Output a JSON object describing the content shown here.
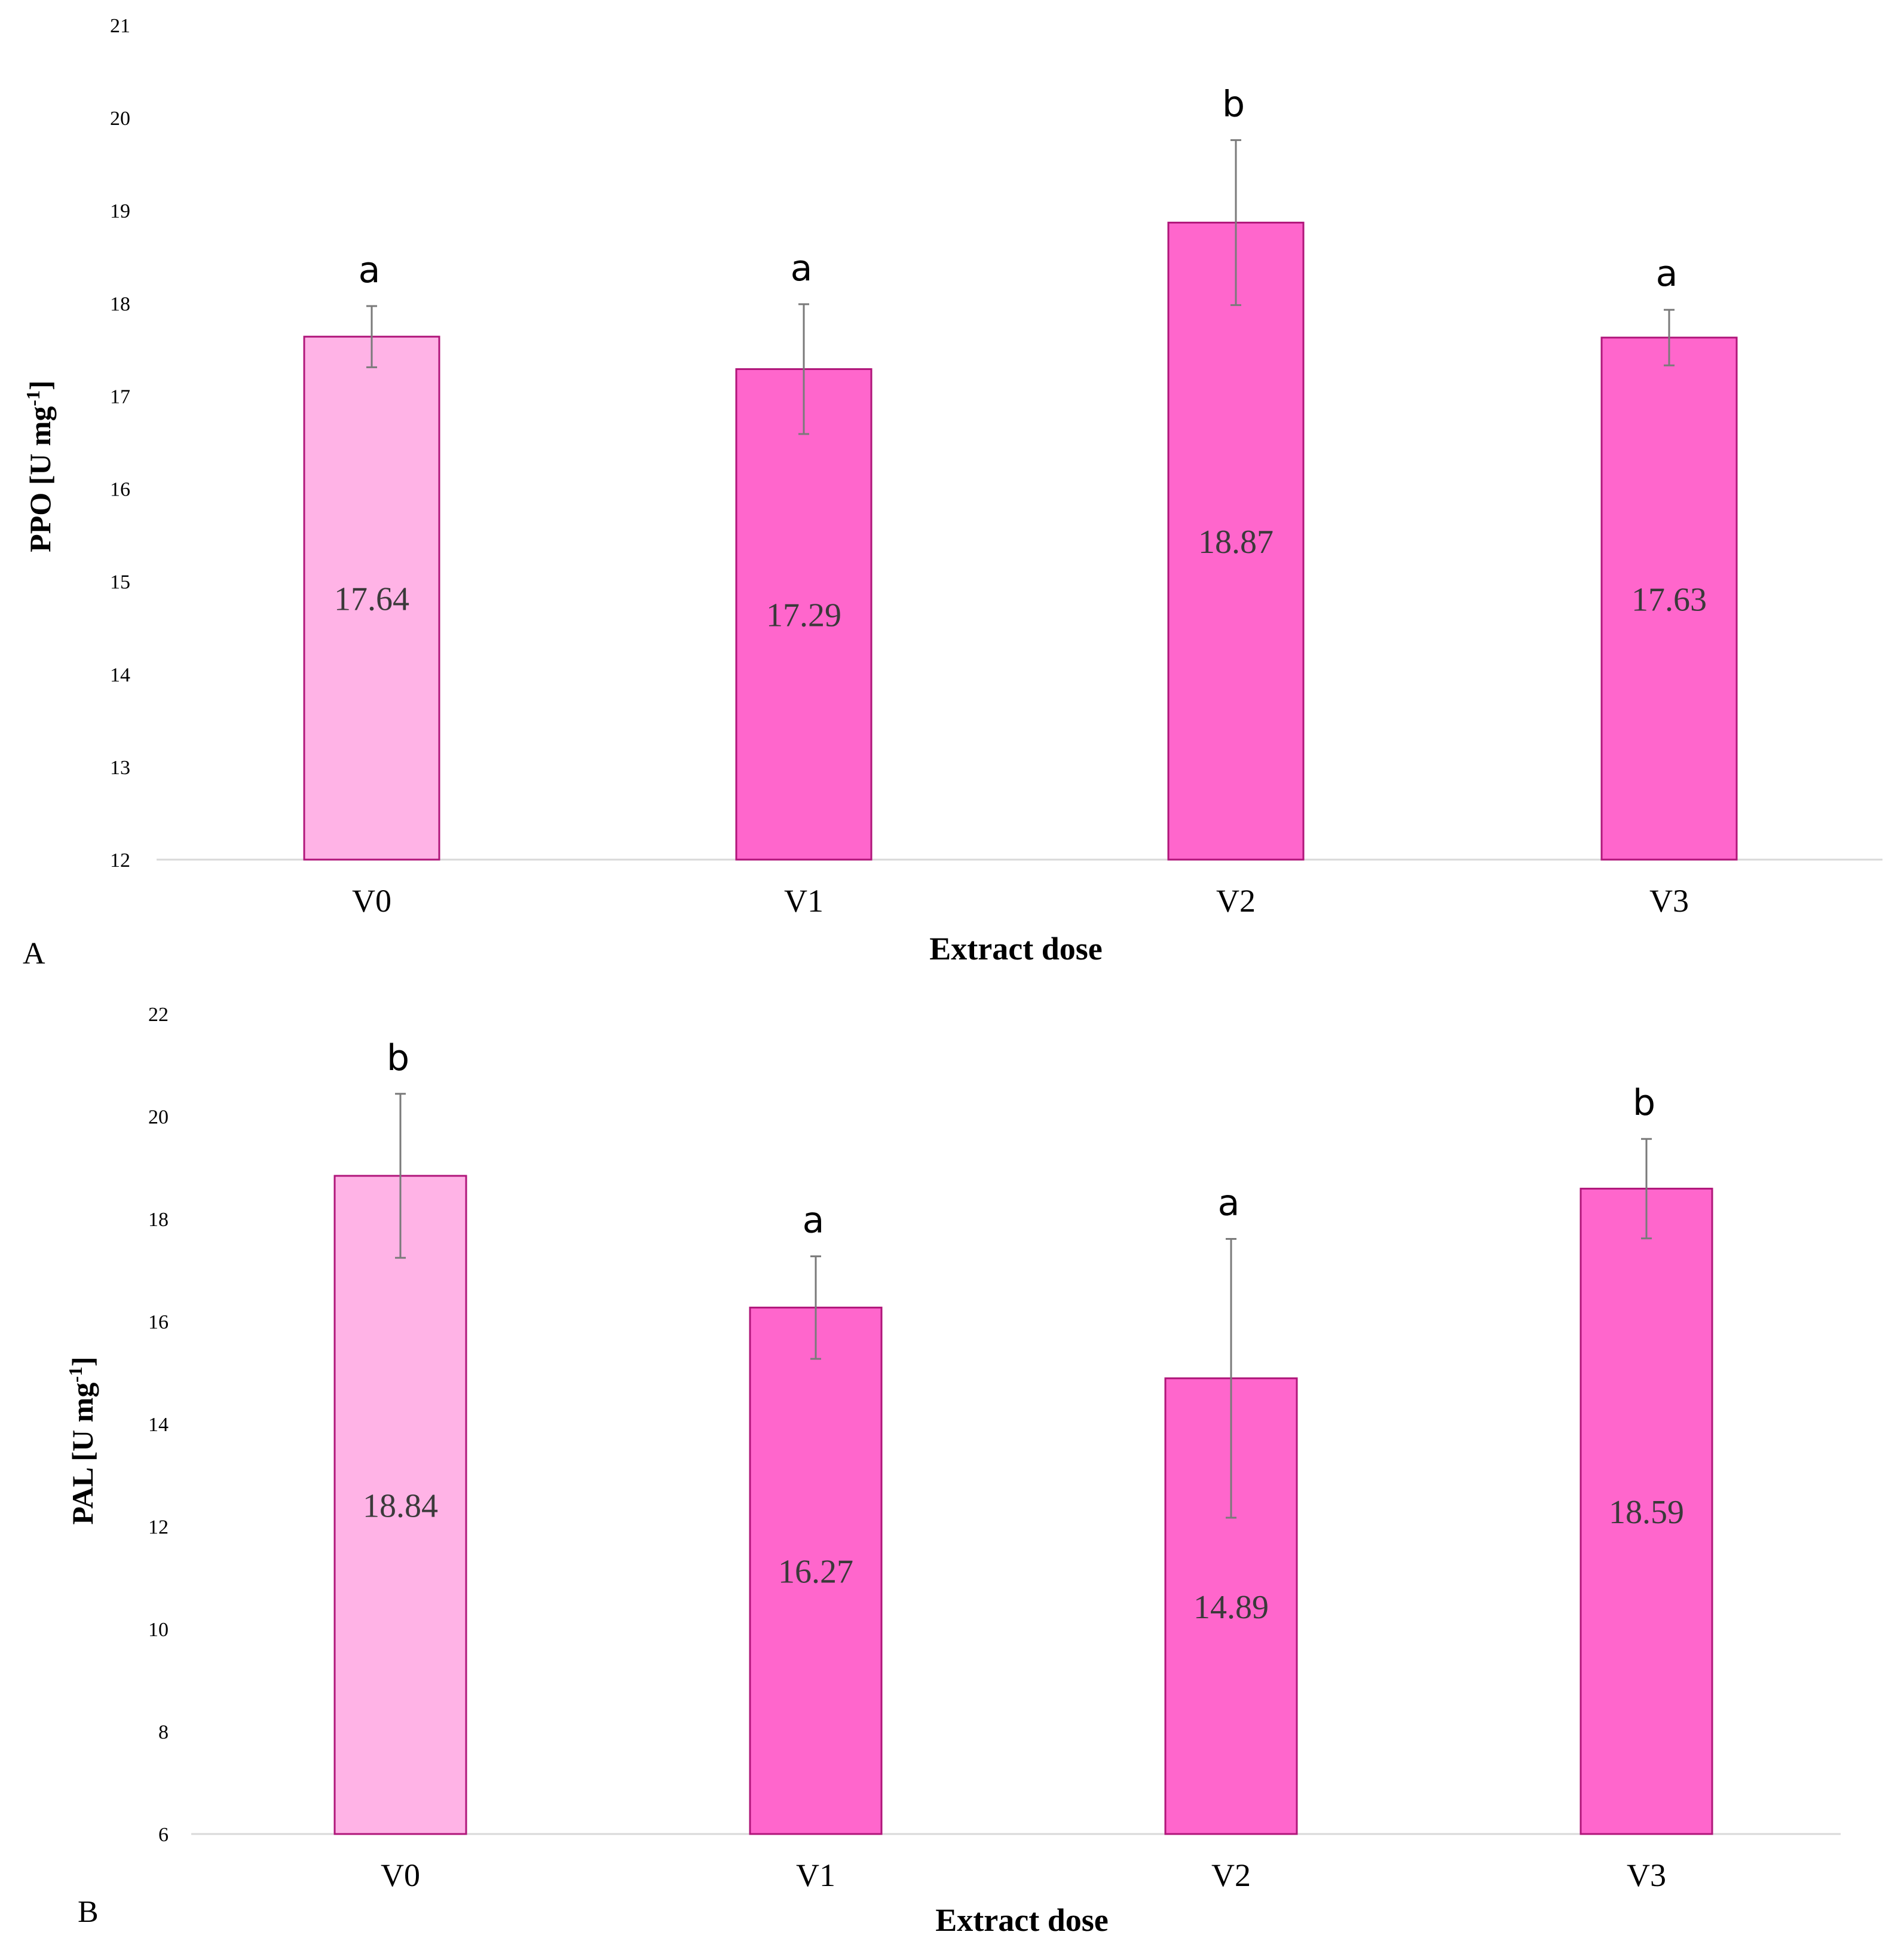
{
  "chart_data": [
    {
      "type": "bar",
      "panel": "A",
      "categories": [
        "V0",
        "V1",
        "V2",
        "V3"
      ],
      "values": [
        17.64,
        17.29,
        18.87,
        17.63
      ],
      "value_labels": [
        "17.64",
        "17.29",
        "18.87",
        "17.63"
      ],
      "errors": [
        0.33,
        0.7,
        0.89,
        0.3
      ],
      "significance": [
        "a",
        "a",
        "b",
        "a"
      ],
      "xlabel": "Extract dose",
      "ylabel_main": "PPO [U mg",
      "ylabel_sup": "-1",
      "ylabel_end": "]",
      "ylim": [
        12,
        21
      ],
      "yticks": [
        "12",
        "13",
        "14",
        "15",
        "16",
        "17",
        "18",
        "19",
        "20",
        "21"
      ],
      "grid": false,
      "colors": [
        "#FFB3E6",
        "#FF66CC",
        "#FF66CC",
        "#FF66CC"
      ],
      "edge_color": "#B0167A"
    },
    {
      "type": "bar",
      "panel": "B",
      "categories": [
        "V0",
        "V1",
        "V2",
        "V3"
      ],
      "values": [
        18.84,
        16.27,
        14.89,
        18.59
      ],
      "value_labels": [
        "18.84",
        "16.27",
        "14.89",
        "18.59"
      ],
      "errors": [
        1.6,
        1.0,
        2.72,
        0.97
      ],
      "significance": [
        "b",
        "a",
        "a",
        "b"
      ],
      "xlabel": "Extract dose",
      "ylabel_main": "PAL [U mg",
      "ylabel_sup": "-1",
      "ylabel_end": "]",
      "ylim": [
        6,
        22
      ],
      "yticks": [
        "6",
        "8",
        "10",
        "12",
        "14",
        "16",
        "18",
        "20",
        "22"
      ],
      "grid": false,
      "colors": [
        "#FFB3E6",
        "#FF66CC",
        "#FF66CC",
        "#FF66CC"
      ],
      "edge_color": "#B0167A"
    }
  ]
}
